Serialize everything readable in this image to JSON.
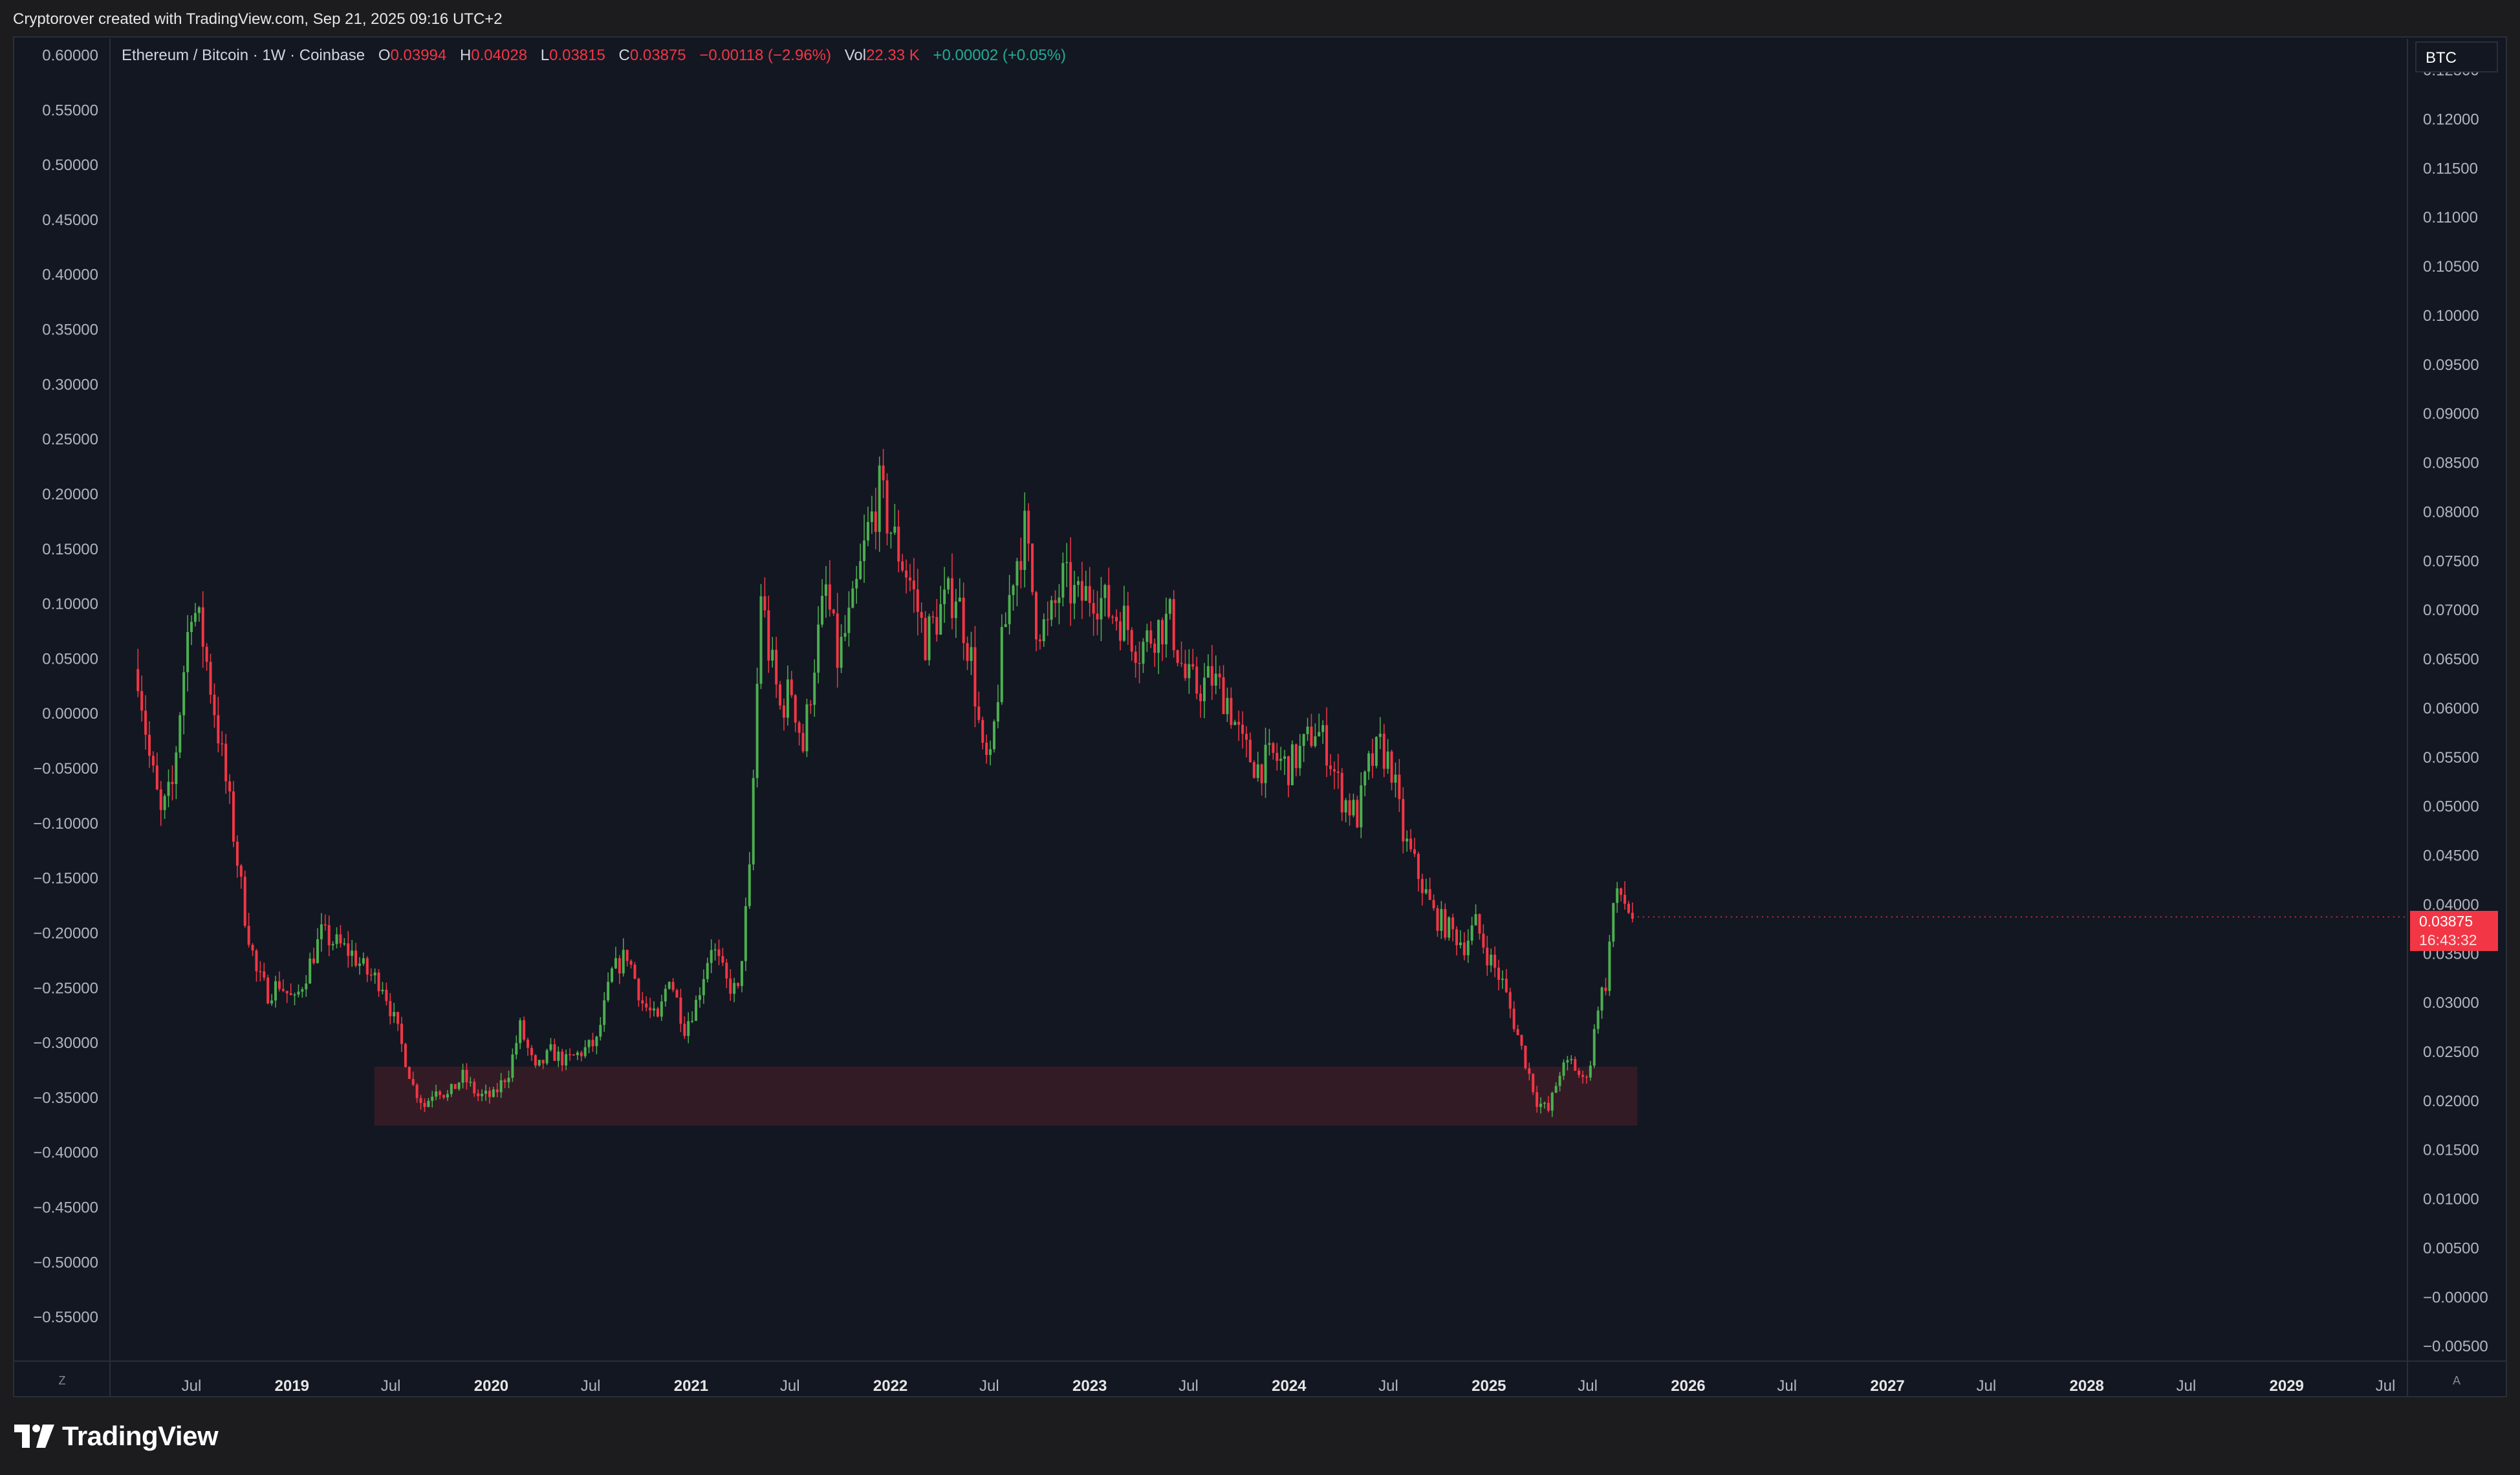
{
  "header": {
    "created_by": "Cryptorover created with TradingView.com, Sep 21, 2025 09:16 UTC+2"
  },
  "legend": {
    "symbol": "Ethereum / Bitcoin · 1W · Coinbase",
    "o_label": "O",
    "o_value": "0.03994",
    "h_label": "H",
    "h_value": "0.04028",
    "l_label": "L",
    "l_value": "0.03815",
    "c_label": "C",
    "c_value": "0.03875",
    "change": "−0.00118 (−2.96%)",
    "vol_label": "Vol",
    "vol_value": "22.33 K",
    "vol_change": "+0.00002 (+0.05%)"
  },
  "currency_badge": "BTC",
  "price_tag": {
    "price": "0.03875",
    "countdown": "16:43:32"
  },
  "axis_buttons": {
    "left": "Z",
    "right": "A"
  },
  "brand": {
    "name": "TradingView"
  },
  "colors": {
    "background": "#131722",
    "up": "#4caf50",
    "down": "#f23645",
    "zone_fill": "#3a1c26",
    "text": "#d1d4dc",
    "axis_text": "#b2b5be"
  },
  "chart_data": {
    "type": "candlestick",
    "symbol": "ETH/BTC",
    "interval": "1W",
    "x_tick_labels": [
      "Jul",
      "2019",
      "Jul",
      "2020",
      "Jul",
      "2021",
      "Jul",
      "2022",
      "Jul",
      "2023",
      "Jul",
      "2024",
      "Jul",
      "2025",
      "Jul",
      "2026",
      "Jul",
      "2027",
      "Jul",
      "2028",
      "Jul",
      "2029",
      "Jul"
    ],
    "x_tick_dates": [
      "2018-07-01",
      "2019-01-01",
      "2019-07-01",
      "2020-01-01",
      "2020-07-01",
      "2021-01-01",
      "2021-07-01",
      "2022-01-01",
      "2022-07-01",
      "2023-01-01",
      "2023-07-01",
      "2024-01-01",
      "2024-07-01",
      "2025-01-01",
      "2025-07-01",
      "2026-01-01",
      "2026-07-01",
      "2027-01-01",
      "2027-07-01",
      "2028-01-01",
      "2028-07-01",
      "2029-01-01",
      "2029-07-01"
    ],
    "left_axis": {
      "ticks": [
        "0.60000",
        "0.55000",
        "0.50000",
        "0.45000",
        "0.40000",
        "0.35000",
        "0.30000",
        "0.25000",
        "0.20000",
        "0.15000",
        "0.10000",
        "0.05000",
        "0.00000",
        "−0.05000",
        "−0.10000",
        "−0.15000",
        "−0.20000",
        "−0.25000",
        "−0.30000",
        "−0.35000",
        "−0.40000",
        "−0.45000",
        "−0.50000",
        "−0.55000"
      ],
      "range": [
        -0.59,
        0.615
      ]
    },
    "right_axis": {
      "ticks": [
        "0.12500",
        "0.12000",
        "0.11500",
        "0.11000",
        "0.10500",
        "0.10000",
        "0.09500",
        "0.09000",
        "0.08500",
        "0.08000",
        "0.07500",
        "0.07000",
        "0.06500",
        "0.06000",
        "0.05500",
        "0.05000",
        "0.04500",
        "0.04000",
        "0.03500",
        "0.03000",
        "0.02500",
        "0.02000",
        "0.01500",
        "0.01000",
        "0.00500",
        "−0.00000",
        "−0.00500"
      ],
      "range": [
        -0.0065,
        0.1282
      ],
      "last_price": 0.03875
    },
    "price_path": [
      [
        "2018-03-25",
        0.064
      ],
      [
        "2018-04-15",
        0.055
      ],
      [
        "2018-05-06",
        0.049
      ],
      [
        "2018-05-27",
        0.052
      ],
      [
        "2018-06-17",
        0.064
      ],
      [
        "2018-07-01",
        0.071
      ],
      [
        "2018-07-22",
        0.067
      ],
      [
        "2018-08-12",
        0.06
      ],
      [
        "2018-09-09",
        0.05
      ],
      [
        "2018-10-07",
        0.039
      ],
      [
        "2018-10-28",
        0.033
      ],
      [
        "2018-11-18",
        0.031
      ],
      [
        "2018-12-09",
        0.032
      ],
      [
        "2019-01-06",
        0.03
      ],
      [
        "2019-02-03",
        0.034
      ],
      [
        "2019-02-24",
        0.037
      ],
      [
        "2019-03-24",
        0.036
      ],
      [
        "2019-04-21",
        0.035
      ],
      [
        "2019-05-19",
        0.033
      ],
      [
        "2019-06-16",
        0.032
      ],
      [
        "2019-07-14",
        0.027
      ],
      [
        "2019-08-11",
        0.0215
      ],
      [
        "2019-09-01",
        0.0195
      ],
      [
        "2019-09-22",
        0.0215
      ],
      [
        "2019-10-13",
        0.0205
      ],
      [
        "2019-11-10",
        0.0225
      ],
      [
        "2019-12-08",
        0.0205
      ],
      [
        "2020-01-05",
        0.0205
      ],
      [
        "2020-02-02",
        0.023
      ],
      [
        "2020-02-23",
        0.0275
      ],
      [
        "2020-03-22",
        0.023
      ],
      [
        "2020-04-19",
        0.025
      ],
      [
        "2020-05-17",
        0.024
      ],
      [
        "2020-06-14",
        0.025
      ],
      [
        "2020-07-12",
        0.026
      ],
      [
        "2020-08-09",
        0.033
      ],
      [
        "2020-09-06",
        0.035
      ],
      [
        "2020-10-04",
        0.03
      ],
      [
        "2020-11-01",
        0.028
      ],
      [
        "2020-11-22",
        0.033
      ],
      [
        "2020-12-20",
        0.0275
      ],
      [
        "2021-01-10",
        0.03
      ],
      [
        "2021-02-07",
        0.036
      ],
      [
        "2021-03-07",
        0.032
      ],
      [
        "2021-03-28",
        0.031
      ],
      [
        "2021-04-18",
        0.043
      ],
      [
        "2021-05-09",
        0.072
      ],
      [
        "2021-05-23",
        0.066
      ],
      [
        "2021-06-13",
        0.06
      ],
      [
        "2021-07-04",
        0.062
      ],
      [
        "2021-07-25",
        0.056
      ],
      [
        "2021-08-15",
        0.065
      ],
      [
        "2021-09-05",
        0.072
      ],
      [
        "2021-09-26",
        0.065
      ],
      [
        "2021-10-24",
        0.07
      ],
      [
        "2021-11-21",
        0.078
      ],
      [
        "2021-12-12",
        0.082
      ],
      [
        "2022-01-09",
        0.077
      ],
      [
        "2022-02-06",
        0.073
      ],
      [
        "2022-03-06",
        0.067
      ],
      [
        "2022-04-03",
        0.07
      ],
      [
        "2022-05-01",
        0.072
      ],
      [
        "2022-05-29",
        0.065
      ],
      [
        "2022-06-19",
        0.055
      ],
      [
        "2022-07-03",
        0.054
      ],
      [
        "2022-07-24",
        0.066
      ],
      [
        "2022-08-14",
        0.074
      ],
      [
        "2022-09-04",
        0.078
      ],
      [
        "2022-09-25",
        0.069
      ],
      [
        "2022-10-16",
        0.068
      ],
      [
        "2022-11-13",
        0.073
      ],
      [
        "2022-12-11",
        0.071
      ],
      [
        "2023-01-08",
        0.072
      ],
      [
        "2023-02-05",
        0.07
      ],
      [
        "2023-03-05",
        0.069
      ],
      [
        "2023-04-02",
        0.066
      ],
      [
        "2023-04-30",
        0.068
      ],
      [
        "2023-05-28",
        0.069
      ],
      [
        "2023-06-25",
        0.063
      ],
      [
        "2023-07-16",
        0.062
      ],
      [
        "2023-08-13",
        0.063
      ],
      [
        "2023-09-10",
        0.061
      ],
      [
        "2023-10-08",
        0.056
      ],
      [
        "2023-11-05",
        0.054
      ],
      [
        "2023-12-03",
        0.055
      ],
      [
        "2023-12-31",
        0.054
      ],
      [
        "2024-01-28",
        0.056
      ],
      [
        "2024-02-18",
        0.058
      ],
      [
        "2024-03-10",
        0.056
      ],
      [
        "2024-04-07",
        0.051
      ],
      [
        "2024-05-05",
        0.049
      ],
      [
        "2024-05-26",
        0.054
      ],
      [
        "2024-06-16",
        0.056
      ],
      [
        "2024-07-07",
        0.054
      ],
      [
        "2024-07-28",
        0.047
      ],
      [
        "2024-08-25",
        0.043
      ],
      [
        "2024-09-22",
        0.039
      ],
      [
        "2024-10-20",
        0.0375
      ],
      [
        "2024-11-17",
        0.036
      ],
      [
        "2024-12-08",
        0.038
      ],
      [
        "2024-12-29",
        0.035
      ],
      [
        "2025-01-26",
        0.032
      ],
      [
        "2025-02-16",
        0.028
      ],
      [
        "2025-03-09",
        0.024
      ],
      [
        "2025-03-30",
        0.02
      ],
      [
        "2025-04-20",
        0.019
      ],
      [
        "2025-05-11",
        0.023
      ],
      [
        "2025-06-01",
        0.024
      ],
      [
        "2025-06-22",
        0.022
      ],
      [
        "2025-07-06",
        0.024
      ],
      [
        "2025-07-20",
        0.03
      ],
      [
        "2025-08-03",
        0.032
      ],
      [
        "2025-08-17",
        0.04
      ],
      [
        "2025-08-31",
        0.041
      ],
      [
        "2025-09-14",
        0.0395
      ],
      [
        "2025-09-21",
        0.03875
      ]
    ],
    "highlight_zone": {
      "from": "2019-06-01",
      "to": "2025-09-30",
      "price_low": 0.0175,
      "price_high": 0.0235
    }
  }
}
